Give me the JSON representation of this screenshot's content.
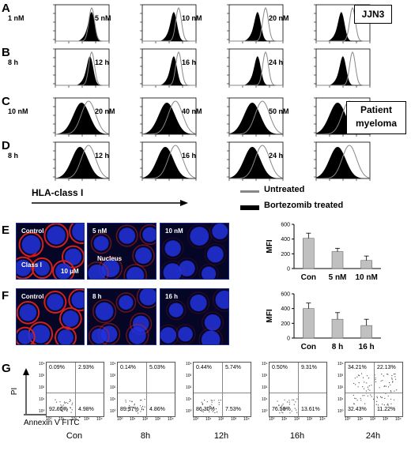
{
  "panels": {
    "A": {
      "letter": "A",
      "labels": [
        "1 nM",
        "5 nM",
        "10 nM",
        "20 nM"
      ],
      "box": "JJN3"
    },
    "B": {
      "letter": "B",
      "labels": [
        "8 h",
        "12 h",
        "16 h",
        "24 h"
      ]
    },
    "C": {
      "letter": "C",
      "labels": [
        "10 nM",
        "20 nM",
        "40 nM",
        "50 nM"
      ],
      "box": "Patient myeloma"
    },
    "D": {
      "letter": "D",
      "labels": [
        "8 h",
        "12 h",
        "16 h",
        "24 h"
      ]
    },
    "E": {
      "letter": "E",
      "images": [
        "Control",
        "5 nM",
        "10 nM"
      ],
      "control_arrow": "Class I",
      "nucleus": "Nucleus",
      "scale": "10 μM"
    },
    "F": {
      "letter": "F",
      "images": [
        "Control",
        "8 h",
        "16 h"
      ]
    },
    "G": {
      "letter": "G",
      "yaxis": "PI",
      "xaxis": "Annexin V FITC"
    }
  },
  "hist_axis_label": "HLA-class I",
  "legend": {
    "untreated": "Untreated",
    "treated": "Bortezomib treated"
  },
  "chart_data": [
    {
      "type": "bar",
      "ylabel": "MFI",
      "categories": [
        "Con",
        "5 nM",
        "10 nM"
      ],
      "values": [
        410,
        230,
        110
      ],
      "errors": [
        70,
        45,
        60
      ],
      "ylim": [
        0,
        600
      ],
      "yticks": [
        "0",
        "200",
        "400",
        "600"
      ],
      "color": "#c0c0c0"
    },
    {
      "type": "bar",
      "ylabel": "MFI",
      "categories": [
        "Con",
        "8 h",
        "16 h"
      ],
      "values": [
        400,
        255,
        170
      ],
      "errors": [
        75,
        90,
        85
      ],
      "ylim": [
        0,
        600
      ],
      "yticks": [
        "0",
        "200",
        "400",
        "600"
      ],
      "color": "#c0c0c0"
    }
  ],
  "flow": [
    {
      "caption": "Con",
      "ul": "0.09%",
      "ur": "2.93%",
      "ll": "92.00%",
      "lr": "4.98%"
    },
    {
      "caption": "8h",
      "ul": "0.14%",
      "ur": "5.03%",
      "ll": "89.97%",
      "lr": "4.86%"
    },
    {
      "caption": "12h",
      "ul": "0.44%",
      "ur": "5.74%",
      "ll": "86.30%",
      "lr": "7.53%"
    },
    {
      "caption": "16h",
      "ul": "0.50%",
      "ur": "9.31%",
      "ll": "76.58%",
      "lr": "13.61%"
    },
    {
      "caption": "24h",
      "ul": "34.21%",
      "ur": "22.13%",
      "ll": "32.43%",
      "lr": "11.22%"
    }
  ],
  "colors": {
    "untreated": "#888888",
    "treated": "#000000",
    "micro_bg": "#050526",
    "nucleus": "#2233dd",
    "membrane": "#d02020"
  }
}
